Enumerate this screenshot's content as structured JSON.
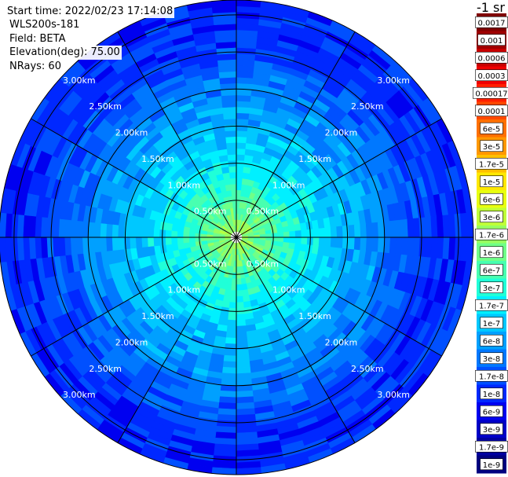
{
  "info": {
    "start_time": "Start time: 2022/02/23 17:14:08",
    "instrument": "WLS200s-181",
    "field": "Field: BETA",
    "elevation": "Elevation(deg): 75.00",
    "nrays": "NRays: 60"
  },
  "colorbar": {
    "title": "-1 sr",
    "levels": [
      {
        "label": "0.0017",
        "color": "#800000"
      },
      {
        "label": "0.001",
        "color": "#a00000"
      },
      {
        "label": "0.0006",
        "color": "#c80000"
      },
      {
        "label": "0.0003",
        "color": "#f00000"
      },
      {
        "label": "0.00017",
        "color": "#ff2000"
      },
      {
        "label": "0.0001",
        "color": "#ff4800"
      },
      {
        "label": "6e-5",
        "color": "#ff7000"
      },
      {
        "label": "3e-5",
        "color": "#ff9800"
      },
      {
        "label": "1.7e-5",
        "color": "#ffc000"
      },
      {
        "label": "1e-5",
        "color": "#ffe800"
      },
      {
        "label": "6e-6",
        "color": "#e8ff10"
      },
      {
        "label": "3e-6",
        "color": "#c0ff38"
      },
      {
        "label": "1.7e-6",
        "color": "#98ff60"
      },
      {
        "label": "1e-6",
        "color": "#70ff88"
      },
      {
        "label": "6e-7",
        "color": "#48ffb0"
      },
      {
        "label": "3e-7",
        "color": "#20ffd8"
      },
      {
        "label": "1.7e-7",
        "color": "#00f0ff"
      },
      {
        "label": "1e-7",
        "color": "#00c8ff"
      },
      {
        "label": "6e-8",
        "color": "#00a0ff"
      },
      {
        "label": "3e-8",
        "color": "#0078ff"
      },
      {
        "label": "1.7e-8",
        "color": "#0050ff"
      },
      {
        "label": "1e-8",
        "color": "#0028ff"
      },
      {
        "label": "6e-9",
        "color": "#0000f0"
      },
      {
        "label": "3e-9",
        "color": "#0000c8"
      },
      {
        "label": "1.7e-9",
        "color": "#0000a0"
      },
      {
        "label": "1e-9",
        "color": "#000080"
      }
    ]
  },
  "chart_data": {
    "type": "heatmap",
    "projection": "polar (PPI)",
    "field": "BETA",
    "units": "-1 sr",
    "elevation_deg": 75.0,
    "nrays": 60,
    "range_rings_km": [
      0.5,
      1.0,
      1.5,
      2.0,
      2.5,
      3.0
    ],
    "range_ring_labels": [
      "0.50km",
      "1.00km",
      "1.50km",
      "2.00km",
      "2.50km",
      "3.00km"
    ],
    "max_range_km": 3.2,
    "spokes_deg": [
      0,
      30,
      60,
      90,
      120,
      150,
      180,
      210,
      240,
      270,
      300,
      330
    ],
    "grid": true,
    "profile": [
      {
        "range_km": 0.1,
        "level": 12
      },
      {
        "range_km": 0.3,
        "level": 13
      },
      {
        "range_km": 0.5,
        "level": 14
      },
      {
        "range_km": 0.7,
        "level": 15
      },
      {
        "range_km": 1.0,
        "level": 16
      },
      {
        "range_km": 1.3,
        "level": 17
      },
      {
        "range_km": 1.7,
        "level": 18
      },
      {
        "range_km": 2.1,
        "level": 19
      },
      {
        "range_km": 2.4,
        "level": 20
      },
      {
        "range_km": 2.8,
        "level": 21
      },
      {
        "range_km": 3.2,
        "level": 21
      }
    ]
  }
}
